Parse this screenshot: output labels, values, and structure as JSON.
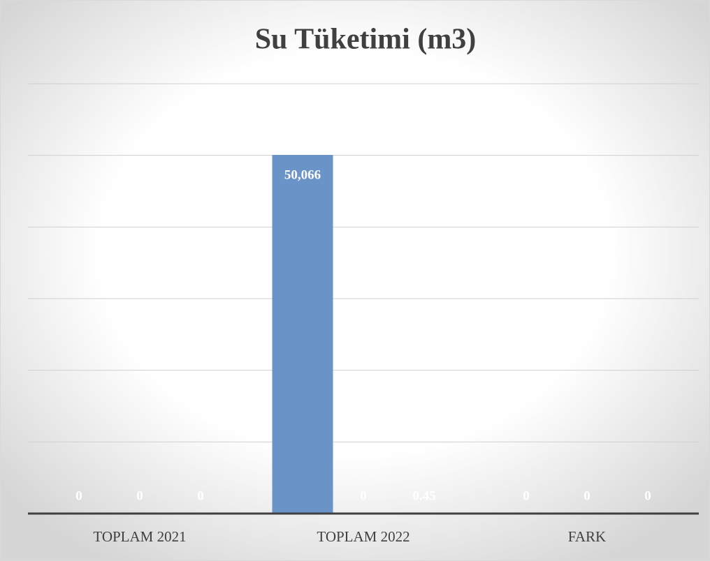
{
  "chart_data": {
    "type": "bar",
    "title": "Su Tüketimi (m3)",
    "categories": [
      "TOPLAM 2021",
      "TOPLAM 2022",
      "FARK"
    ],
    "series": [
      {
        "color": "#6a93c7",
        "values": [
          0,
          50066,
          0
        ],
        "value_labels": [
          "0",
          "50,066",
          "0"
        ]
      },
      {
        "color": "#ed7d31",
        "values": [
          0,
          0,
          0
        ],
        "value_labels": [
          "0",
          "0",
          "0"
        ]
      },
      {
        "color": "#a5a5a5",
        "values": [
          0,
          0.45,
          0
        ],
        "value_labels": [
          "0",
          "0.45",
          "0"
        ]
      }
    ],
    "ylim": [
      0,
      60000
    ],
    "yticks": [
      0,
      10000,
      20000,
      30000,
      40000,
      50000,
      60000
    ],
    "grid": true
  }
}
